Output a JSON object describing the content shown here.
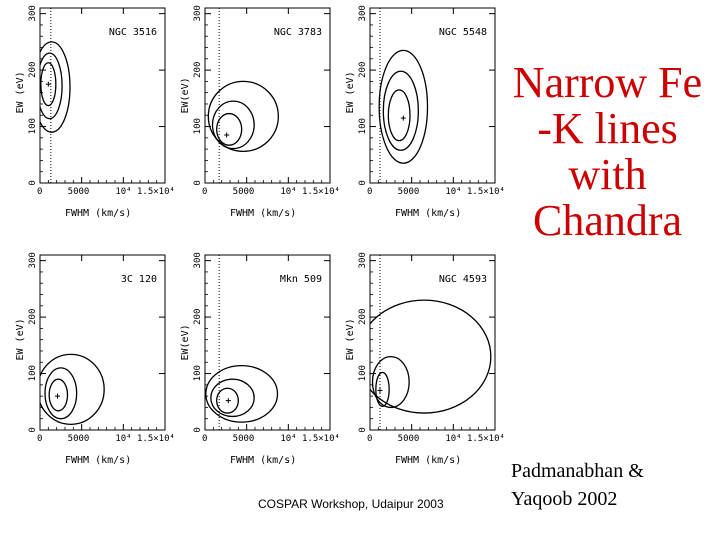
{
  "slide": {
    "title_lines": [
      "Narrow Fe",
      "-K lines",
      "with",
      "Chandra"
    ],
    "footer": "COSPAR Workshop, Udaipur 2003",
    "citation_lines": [
      "Padmanabhan &",
      "Yaqoob 2002"
    ],
    "title_color": "#cc0000"
  },
  "chart_data": [
    {
      "type": "contour",
      "title": "NGC 3516",
      "xlabel": "FWHM (km/s)",
      "ylabel": "EW (eV)",
      "xlim": [
        0,
        15000
      ],
      "ylim": [
        0,
        310
      ],
      "x_ticks": [
        "0",
        "5000",
        "10⁴",
        "1.5×10⁴"
      ],
      "y_ticks": [
        "0",
        "100",
        "200",
        "300"
      ],
      "resolution_line_x": 1300,
      "best_fit": {
        "x": 1000,
        "y": 175
      },
      "contours": [
        {
          "level": 1,
          "cx": 1000,
          "cy": 175,
          "rx": 900,
          "ry": 38
        },
        {
          "level": 2,
          "cx": 1150,
          "cy": 172,
          "rx": 1500,
          "ry": 58
        },
        {
          "level": 3,
          "cx": 1400,
          "cy": 170,
          "rx": 2200,
          "ry": 80
        }
      ]
    },
    {
      "type": "contour",
      "title": "NGC 3783",
      "xlabel": "FWHM (km/s)",
      "ylabel": "EW(eV)",
      "xlim": [
        0,
        15000
      ],
      "ylim": [
        0,
        310
      ],
      "x_ticks": [
        "0",
        "5000",
        "10⁴",
        "1.5×10⁴"
      ],
      "y_ticks": [
        "0",
        "100",
        "200",
        "300"
      ],
      "resolution_line_x": 1700,
      "best_fit": {
        "x": 2600,
        "y": 85
      },
      "contours": [
        {
          "level": 1,
          "cx": 2900,
          "cy": 95,
          "rx": 1500,
          "ry": 28
        },
        {
          "level": 2,
          "cx": 3400,
          "cy": 103,
          "rx": 2500,
          "ry": 42
        },
        {
          "level": 3,
          "cx": 4600,
          "cy": 118,
          "rx": 4200,
          "ry": 62
        }
      ]
    },
    {
      "type": "contour",
      "title": "NGC 5548",
      "xlabel": "FWHM (km/s)",
      "ylabel": "EW (eV)",
      "xlim": [
        0,
        15000
      ],
      "ylim": [
        0,
        310
      ],
      "x_ticks": [
        "0",
        "5000",
        "10⁴",
        "1.5×10⁴"
      ],
      "y_ticks": [
        "0",
        "100",
        "200",
        "300"
      ],
      "resolution_line_x": 1200,
      "best_fit": {
        "x": 4000,
        "y": 115
      },
      "contours": [
        {
          "level": 1,
          "cx": 3500,
          "cy": 120,
          "rx": 1300,
          "ry": 45
        },
        {
          "level": 2,
          "cx": 3700,
          "cy": 128,
          "rx": 2100,
          "ry": 70
        },
        {
          "level": 3,
          "cx": 4000,
          "cy": 135,
          "rx": 2900,
          "ry": 100
        }
      ]
    },
    {
      "type": "contour",
      "title": "3C 120",
      "xlabel": "FWHM (km/s)",
      "ylabel": "EW (eV)",
      "xlim": [
        0,
        15000
      ],
      "ylim": [
        0,
        310
      ],
      "x_ticks": [
        "0",
        "5000",
        "10⁴",
        "1.5×10⁴"
      ],
      "y_ticks": [
        "0",
        "100",
        "200",
        "300"
      ],
      "resolution_line_x": null,
      "best_fit": {
        "x": 2100,
        "y": 60
      },
      "contours": [
        {
          "level": 1,
          "cx": 2200,
          "cy": 62,
          "rx": 1100,
          "ry": 28
        },
        {
          "level": 2,
          "cx": 2500,
          "cy": 65,
          "rx": 1900,
          "ry": 45
        },
        {
          "level": 3,
          "cx": 3700,
          "cy": 72,
          "rx": 4000,
          "ry": 62
        }
      ]
    },
    {
      "type": "contour",
      "title": "Mkn 509",
      "xlabel": "FWHM (km/s)",
      "ylabel": "EW(eV)",
      "xlim": [
        0,
        15000
      ],
      "ylim": [
        0,
        310
      ],
      "x_ticks": [
        "0",
        "5000",
        "10⁴",
        "1.5×10⁴"
      ],
      "y_ticks": [
        "0",
        "100",
        "200",
        "300"
      ],
      "resolution_line_x": 1700,
      "best_fit": {
        "x": 2800,
        "y": 52
      },
      "contours": [
        {
          "level": 1,
          "cx": 2700,
          "cy": 52,
          "rx": 1300,
          "ry": 22
        },
        {
          "level": 2,
          "cx": 3300,
          "cy": 57,
          "rx": 2600,
          "ry": 33
        },
        {
          "level": 3,
          "cx": 4400,
          "cy": 64,
          "rx": 4300,
          "ry": 50
        }
      ]
    },
    {
      "type": "contour",
      "title": "NGC 4593",
      "xlabel": "FWHM (km/s)",
      "ylabel": "EW (eV)",
      "xlim": [
        0,
        15000
      ],
      "ylim": [
        0,
        310
      ],
      "x_ticks": [
        "0",
        "5000",
        "10⁴",
        "1.5×10⁴"
      ],
      "y_ticks": [
        "0",
        "100",
        "200",
        "300"
      ],
      "resolution_line_x": 1200,
      "best_fit": {
        "x": 1200,
        "y": 70
      },
      "contours": [
        {
          "level": 1,
          "cx": 1500,
          "cy": 72,
          "rx": 800,
          "ry": 30
        },
        {
          "level": 2,
          "cx": 2500,
          "cy": 85,
          "rx": 2200,
          "ry": 45
        },
        {
          "level": 3,
          "cx": 6500,
          "cy": 130,
          "rx": 8000,
          "ry": 100
        }
      ]
    }
  ]
}
